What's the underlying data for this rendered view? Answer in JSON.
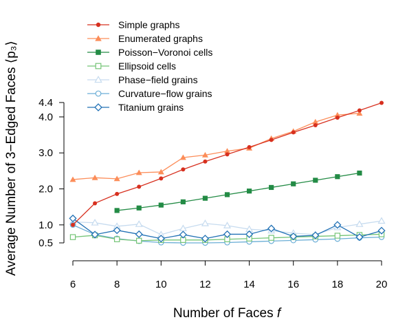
{
  "chart_data": {
    "type": "line",
    "xlabel": "Number of Faces",
    "xlabel_var": "f",
    "ylabel_prefix": "Average Number of 3−Edged Faces ",
    "ylabel_symbol": "⟨p₃⟩",
    "xlim": [
      6,
      20
    ],
    "ylim": [
      0.5,
      4.4
    ],
    "x_ticks": [
      6,
      8,
      10,
      12,
      14,
      16,
      18,
      20
    ],
    "y_ticks": [
      0.5,
      1.0,
      2.0,
      3.0,
      4.0,
      4.4
    ],
    "y_tick_labels": [
      "0.5",
      "1.0",
      "2.0",
      "3.0",
      "4.0",
      "4.4"
    ],
    "grid": false,
    "legend_position": "top-left",
    "series": [
      {
        "name": "Simple graphs",
        "color": "#d7301f",
        "marker": "circle-filled",
        "x": [
          6,
          7,
          8,
          9,
          10,
          11,
          12,
          13,
          14,
          15,
          16,
          17,
          18,
          19,
          20
        ],
        "y": [
          1.0,
          1.6,
          1.86,
          2.06,
          2.29,
          2.54,
          2.76,
          2.96,
          3.16,
          3.36,
          3.57,
          3.77,
          3.98,
          4.18,
          4.39
        ]
      },
      {
        "name": "Enumerated graphs",
        "color": "#fc8d59",
        "marker": "triangle-filled",
        "x": [
          6,
          7,
          8,
          9,
          10,
          11,
          12,
          13,
          14,
          15,
          16,
          17,
          18,
          19
        ],
        "y": [
          2.26,
          2.31,
          2.28,
          2.45,
          2.47,
          2.87,
          2.94,
          3.05,
          3.13,
          3.4,
          3.6,
          3.86,
          4.05,
          4.1
        ]
      },
      {
        "name": "Poisson−Voronoi cells",
        "color": "#238b45",
        "marker": "square-filled",
        "x": [
          8,
          9,
          10,
          11,
          12,
          13,
          14,
          15,
          16,
          17,
          18,
          19
        ],
        "y": [
          1.4,
          1.47,
          1.55,
          1.64,
          1.74,
          1.84,
          1.94,
          2.04,
          2.14,
          2.24,
          2.34,
          2.44
        ]
      },
      {
        "name": "Ellipsoid cells",
        "color": "#74c476",
        "marker": "square-open",
        "x": [
          6,
          7,
          8,
          9,
          10,
          11,
          12,
          13,
          14,
          15,
          16,
          17,
          18,
          19,
          20
        ],
        "y": [
          0.66,
          0.71,
          0.6,
          0.56,
          0.58,
          0.58,
          0.58,
          0.6,
          0.62,
          0.64,
          0.66,
          0.68,
          0.7,
          0.72,
          0.74
        ]
      },
      {
        "name": "Phase−field grains",
        "color": "#c6dbef",
        "marker": "triangle-open",
        "x": [
          6,
          7,
          8,
          9,
          10,
          11,
          12,
          13,
          14,
          15,
          16,
          17,
          18,
          19,
          20
        ],
        "y": [
          1.08,
          1.06,
          0.96,
          1.02,
          0.73,
          0.9,
          1.04,
          0.98,
          0.88,
          0.84,
          0.77,
          0.73,
          0.93,
          1.02,
          1.11
        ]
      },
      {
        "name": "Curvature−flow grains",
        "color": "#6baed6",
        "marker": "circle-open",
        "x": [
          6,
          7,
          8,
          9,
          10,
          11,
          12,
          13,
          14,
          15,
          16,
          17,
          18,
          19,
          20
        ],
        "y": [
          1.0,
          0.73,
          0.62,
          0.55,
          0.51,
          0.5,
          0.5,
          0.51,
          0.53,
          0.55,
          0.57,
          0.59,
          0.61,
          0.64,
          0.66
        ]
      },
      {
        "name": "Titanium grains",
        "color": "#2171b5",
        "marker": "diamond-open",
        "x": [
          6,
          7,
          8,
          9,
          10,
          11,
          12,
          13,
          14,
          15,
          16,
          17,
          18,
          19,
          20
        ],
        "y": [
          1.18,
          0.73,
          0.85,
          0.74,
          0.62,
          0.73,
          0.62,
          0.74,
          0.74,
          0.9,
          0.68,
          0.71,
          1.0,
          0.66,
          0.84
        ]
      }
    ]
  }
}
